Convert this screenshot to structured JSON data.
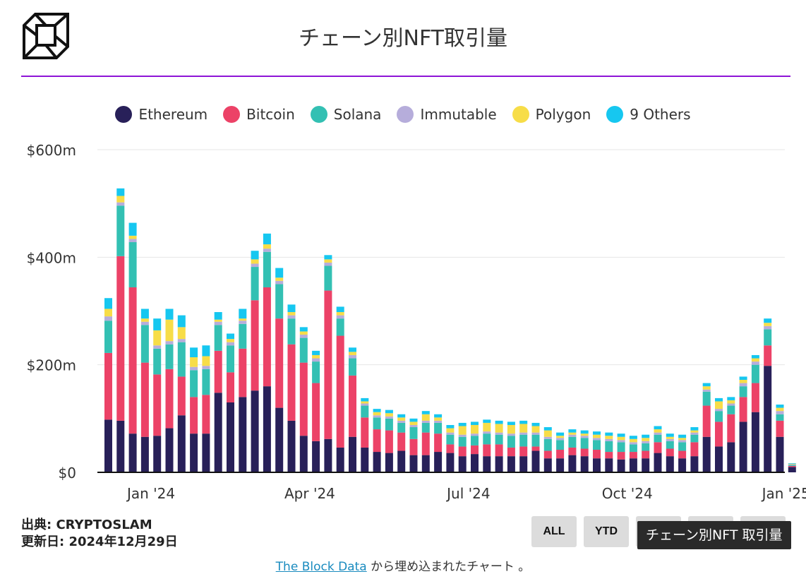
{
  "title": "チェーン別NFT取引量",
  "logo": {
    "icon": "the-block-cube-logo-icon"
  },
  "source_label": "出典: CRYPTOSLAM",
  "updated_label": "更新日: 2024年12月29日",
  "buttons": {
    "all": "ALL",
    "ytd": "YTD"
  },
  "tooltip": "チェーン別NFT 取引量",
  "footer": {
    "link_text": "The Block Data",
    "rest": " から埋め込まれたチャート 。"
  },
  "colors": {
    "title_rule": "#8e14d6",
    "grid": "#e6e6e6"
  },
  "chart_data": {
    "type": "bar",
    "stacked": true,
    "title": "チェーン別NFT取引量",
    "legend_position": "top",
    "grid": true,
    "ylim": [
      0,
      600
    ],
    "yticks": [
      {
        "value": 0,
        "label": "$0"
      },
      {
        "value": 200,
        "label": "$200m"
      },
      {
        "value": 400,
        "label": "$400m"
      },
      {
        "value": 600,
        "label": "$600m"
      }
    ],
    "xticks": [
      {
        "index": 3.5,
        "label": "Jan '24"
      },
      {
        "index": 16.5,
        "label": "Apr '24"
      },
      {
        "index": 29.5,
        "label": "Jul '24"
      },
      {
        "index": 42.5,
        "label": "Oct '24"
      },
      {
        "index": 55.5,
        "label": "Jan '25"
      }
    ],
    "series": [
      {
        "name": "Ethereum",
        "color": "#282059",
        "values": [
          98,
          96,
          72,
          66,
          68,
          82,
          106,
          72,
          72,
          148,
          130,
          140,
          152,
          160,
          120,
          96,
          68,
          58,
          62,
          46,
          66,
          46,
          38,
          36,
          40,
          32,
          32,
          38,
          36,
          30,
          34,
          30,
          30,
          30,
          30,
          40,
          26,
          26,
          32,
          30,
          26,
          26,
          24,
          26,
          26,
          36,
          30,
          26,
          30,
          66,
          48,
          56,
          94,
          112,
          198,
          66,
          10
        ]
      },
      {
        "name": "Bitcoin",
        "color": "#ec4267",
        "values": [
          124,
          306,
          272,
          138,
          114,
          110,
          72,
          68,
          72,
          78,
          56,
          90,
          168,
          184,
          166,
          142,
          136,
          108,
          276,
          208,
          114,
          56,
          42,
          42,
          34,
          30,
          42,
          34,
          16,
          18,
          16,
          22,
          22,
          16,
          18,
          8,
          14,
          16,
          14,
          14,
          16,
          12,
          14,
          12,
          14,
          20,
          14,
          14,
          26,
          58,
          46,
          52,
          46,
          54,
          38,
          30,
          2
        ]
      },
      {
        "name": "Solana",
        "color": "#33c0b3",
        "values": [
          60,
          94,
          84,
          70,
          48,
          46,
          64,
          50,
          48,
          48,
          50,
          46,
          62,
          66,
          64,
          48,
          46,
          40,
          46,
          32,
          32,
          22,
          22,
          22,
          18,
          22,
          18,
          20,
          18,
          18,
          18,
          20,
          18,
          22,
          22,
          22,
          22,
          18,
          20,
          20,
          18,
          20,
          18,
          14,
          14,
          14,
          14,
          16,
          14,
          26,
          20,
          16,
          20,
          34,
          30,
          12,
          2
        ]
      },
      {
        "name": "Immutable",
        "color": "#b6addb",
        "values": [
          8,
          6,
          6,
          6,
          6,
          6,
          6,
          6,
          6,
          6,
          6,
          6,
          6,
          6,
          6,
          6,
          6,
          6,
          6,
          6,
          6,
          4,
          4,
          4,
          4,
          4,
          4,
          4,
          4,
          4,
          4,
          4,
          4,
          4,
          4,
          4,
          4,
          4,
          4,
          4,
          4,
          4,
          4,
          4,
          4,
          4,
          4,
          4,
          4,
          4,
          4,
          4,
          6,
          6,
          6,
          6,
          1
        ]
      },
      {
        "name": "Polygon",
        "color": "#f7dd48",
        "values": [
          14,
          12,
          6,
          6,
          28,
          40,
          22,
          18,
          18,
          4,
          6,
          4,
          8,
          8,
          6,
          6,
          6,
          6,
          6,
          6,
          6,
          4,
          6,
          6,
          6,
          6,
          12,
          6,
          8,
          16,
          16,
          16,
          16,
          16,
          16,
          12,
          12,
          4,
          4,
          4,
          6,
          6,
          6,
          6,
          6,
          6,
          4,
          4,
          4,
          6,
          14,
          6,
          6,
          6,
          6,
          6,
          1
        ]
      },
      {
        "name": "9 Others",
        "color": "#16c7f0",
        "values": [
          20,
          14,
          24,
          18,
          22,
          20,
          22,
          18,
          20,
          14,
          10,
          18,
          16,
          20,
          18,
          14,
          8,
          8,
          8,
          10,
          8,
          6,
          6,
          6,
          6,
          6,
          6,
          6,
          6,
          6,
          6,
          6,
          6,
          6,
          6,
          6,
          6,
          6,
          6,
          6,
          6,
          6,
          6,
          6,
          6,
          6,
          6,
          6,
          6,
          6,
          6,
          6,
          6,
          6,
          8,
          6,
          1
        ]
      }
    ]
  }
}
